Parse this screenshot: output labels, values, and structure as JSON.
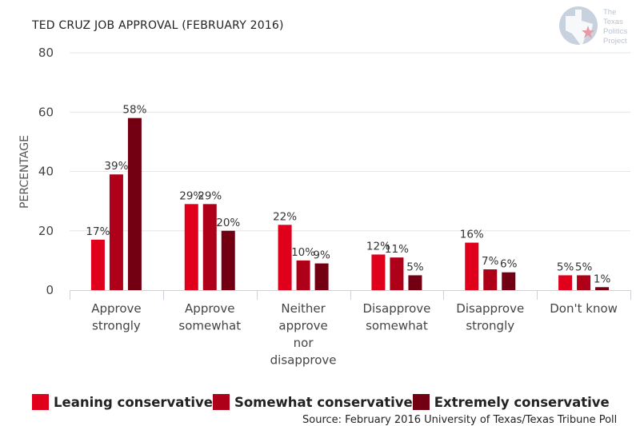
{
  "chart_data": {
    "type": "bar",
    "title": "TED CRUZ JOB APPROVAL (FEBRUARY 2016)",
    "xlabel": "",
    "ylabel": "PERCENTAGE",
    "ylim": [
      0,
      80
    ],
    "yticks": [
      0,
      20,
      40,
      60,
      80
    ],
    "grid": true,
    "legend_position": "bottom",
    "categories": [
      [
        "Approve",
        "strongly"
      ],
      [
        "Approve",
        "somewhat"
      ],
      [
        "Neither",
        "approve",
        "nor",
        "disapprove"
      ],
      [
        "Disapprove",
        "somewhat"
      ],
      [
        "Disapprove",
        "strongly"
      ],
      [
        "Don't know"
      ]
    ],
    "series": [
      {
        "name": "Leaning conservative",
        "color": "#e0001b",
        "values": [
          17,
          29,
          22,
          12,
          16,
          5
        ]
      },
      {
        "name": "Somewhat conservative",
        "color": "#ae0019",
        "values": [
          39,
          29,
          10,
          11,
          7,
          5
        ]
      },
      {
        "name": "Extremely conservative",
        "color": "#720012",
        "values": [
          58,
          20,
          9,
          5,
          6,
          1
        ]
      }
    ],
    "value_suffix": "%",
    "source": "Source: February 2016 University of Texas/Texas Tribune Poll"
  },
  "logo": {
    "name": "The Texas Politics Project",
    "lines": [
      "The",
      "Texas",
      "Politics",
      "Project"
    ],
    "icon": "texas-star-logo-icon"
  }
}
